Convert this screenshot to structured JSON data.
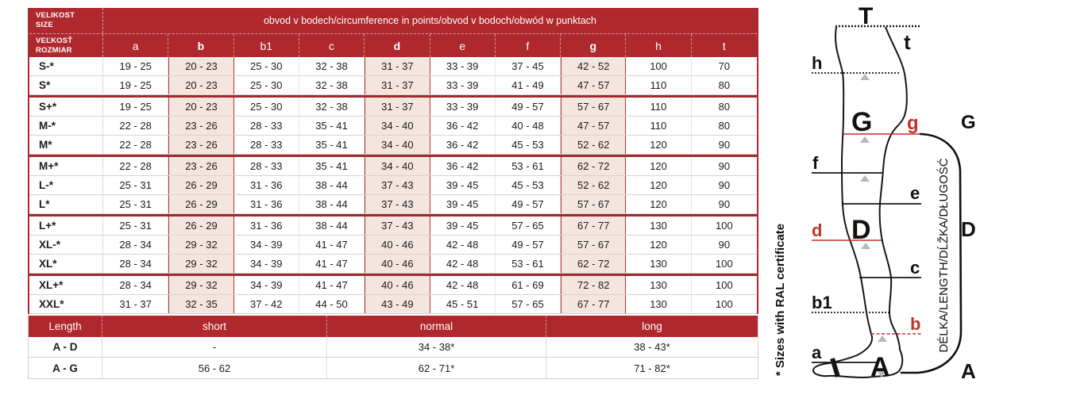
{
  "colors": {
    "header_red": "#AE282D",
    "separator_red": "#A2282A",
    "highlight_bg": "#F4E5DF",
    "highlight_border": "#AF3A33",
    "accent_red": "#BE3428"
  },
  "main_table": {
    "corner_top": [
      "VELIKOST",
      "SIZE"
    ],
    "corner_bottom": [
      "VEĽKOSŤ",
      "ROZMIAR"
    ],
    "span_header": "obvod v bodech/circumference in points/obvod v bodoch/obwód w punktach",
    "columns": [
      "a",
      "b",
      "b1",
      "c",
      "d",
      "e",
      "f",
      "g",
      "h",
      "t"
    ],
    "highlighted_columns": [
      "b",
      "d",
      "g"
    ],
    "groups": [
      {
        "rows": [
          {
            "size": "S-*",
            "values": [
              "19 - 25",
              "20 - 23",
              "25 - 30",
              "32 - 38",
              "31 - 37",
              "33 - 39",
              "37 - 45",
              "42 - 52",
              "100",
              "70"
            ]
          },
          {
            "size": "S*",
            "values": [
              "19 - 25",
              "20 - 23",
              "25 - 30",
              "32 - 38",
              "31 - 37",
              "33 - 39",
              "41 - 49",
              "47 - 57",
              "110",
              "80"
            ]
          }
        ]
      },
      {
        "rows": [
          {
            "size": "S+*",
            "values": [
              "19 - 25",
              "20 - 23",
              "25 - 30",
              "32 - 38",
              "31 - 37",
              "33 - 39",
              "49 - 57",
              "57 - 67",
              "110",
              "80"
            ]
          },
          {
            "size": "M-*",
            "values": [
              "22 - 28",
              "23 - 26",
              "28 - 33",
              "35 - 41",
              "34 - 40",
              "36 - 42",
              "40 - 48",
              "47 - 57",
              "110",
              "80"
            ]
          },
          {
            "size": "M*",
            "values": [
              "22 - 28",
              "23 - 26",
              "28 - 33",
              "35 - 41",
              "34 - 40",
              "36 - 42",
              "45 - 53",
              "52 - 62",
              "120",
              "90"
            ]
          }
        ]
      },
      {
        "rows": [
          {
            "size": "M+*",
            "values": [
              "22 - 28",
              "23 - 26",
              "28 - 33",
              "35 - 41",
              "34 - 40",
              "36 - 42",
              "53 - 61",
              "62 - 72",
              "120",
              "90"
            ]
          },
          {
            "size": "L-*",
            "values": [
              "25 - 31",
              "26 - 29",
              "31 - 36",
              "38 - 44",
              "37 - 43",
              "39 - 45",
              "45 - 53",
              "52 - 62",
              "120",
              "90"
            ]
          },
          {
            "size": "L*",
            "values": [
              "25 - 31",
              "26 - 29",
              "31 - 36",
              "38 - 44",
              "37 - 43",
              "39 - 45",
              "49 - 57",
              "57 - 67",
              "120",
              "90"
            ]
          }
        ]
      },
      {
        "rows": [
          {
            "size": "L+*",
            "values": [
              "25 - 31",
              "26 - 29",
              "31 - 36",
              "38 - 44",
              "37 - 43",
              "39 - 45",
              "57 - 65",
              "67 - 77",
              "130",
              "100"
            ]
          },
          {
            "size": "XL-*",
            "values": [
              "28 - 34",
              "29 - 32",
              "34 - 39",
              "41 - 47",
              "40 - 46",
              "42 - 48",
              "49 - 57",
              "57 - 67",
              "120",
              "90"
            ]
          },
          {
            "size": "XL*",
            "values": [
              "28 - 34",
              "29 - 32",
              "34 - 39",
              "41 - 47",
              "40 - 46",
              "42 - 48",
              "53 - 61",
              "62 - 72",
              "130",
              "100"
            ]
          }
        ]
      },
      {
        "rows": [
          {
            "size": "XL+*",
            "values": [
              "28 - 34",
              "29 - 32",
              "34 - 39",
              "41 - 47",
              "40 - 46",
              "42 - 48",
              "61 - 69",
              "72 - 82",
              "130",
              "100"
            ]
          },
          {
            "size": "XXL*",
            "values": [
              "31 - 37",
              "32 - 35",
              "37 - 42",
              "44 - 50",
              "43 - 49",
              "45 - 51",
              "57 - 65",
              "67 - 77",
              "130",
              "100"
            ]
          }
        ]
      }
    ]
  },
  "length_table": {
    "headers": [
      "Length",
      "short",
      "normal",
      "long"
    ],
    "rows": [
      {
        "label": "A - D",
        "values": [
          "-",
          "34 - 38*",
          "38 - 43*"
        ]
      },
      {
        "label": "A - G",
        "values": [
          "56 - 62",
          "62 - 71*",
          "71 - 82*"
        ]
      }
    ]
  },
  "ral_note": "* Sizes with RAL certificate",
  "diagram": {
    "length_axis_label": "DÉLKA/LENGTH/DĹŽKA/DŁUGOŚĆ",
    "labels": {
      "T": "T",
      "t": "t",
      "h": "h",
      "G": "G",
      "g": "g",
      "f": "f",
      "e": "e",
      "d": "d",
      "D": "D",
      "c": "c",
      "b1": "b1",
      "b": "b",
      "a": "a",
      "A": "A"
    },
    "bracket_labels": {
      "G": "G",
      "D": "D",
      "A": "A"
    }
  }
}
